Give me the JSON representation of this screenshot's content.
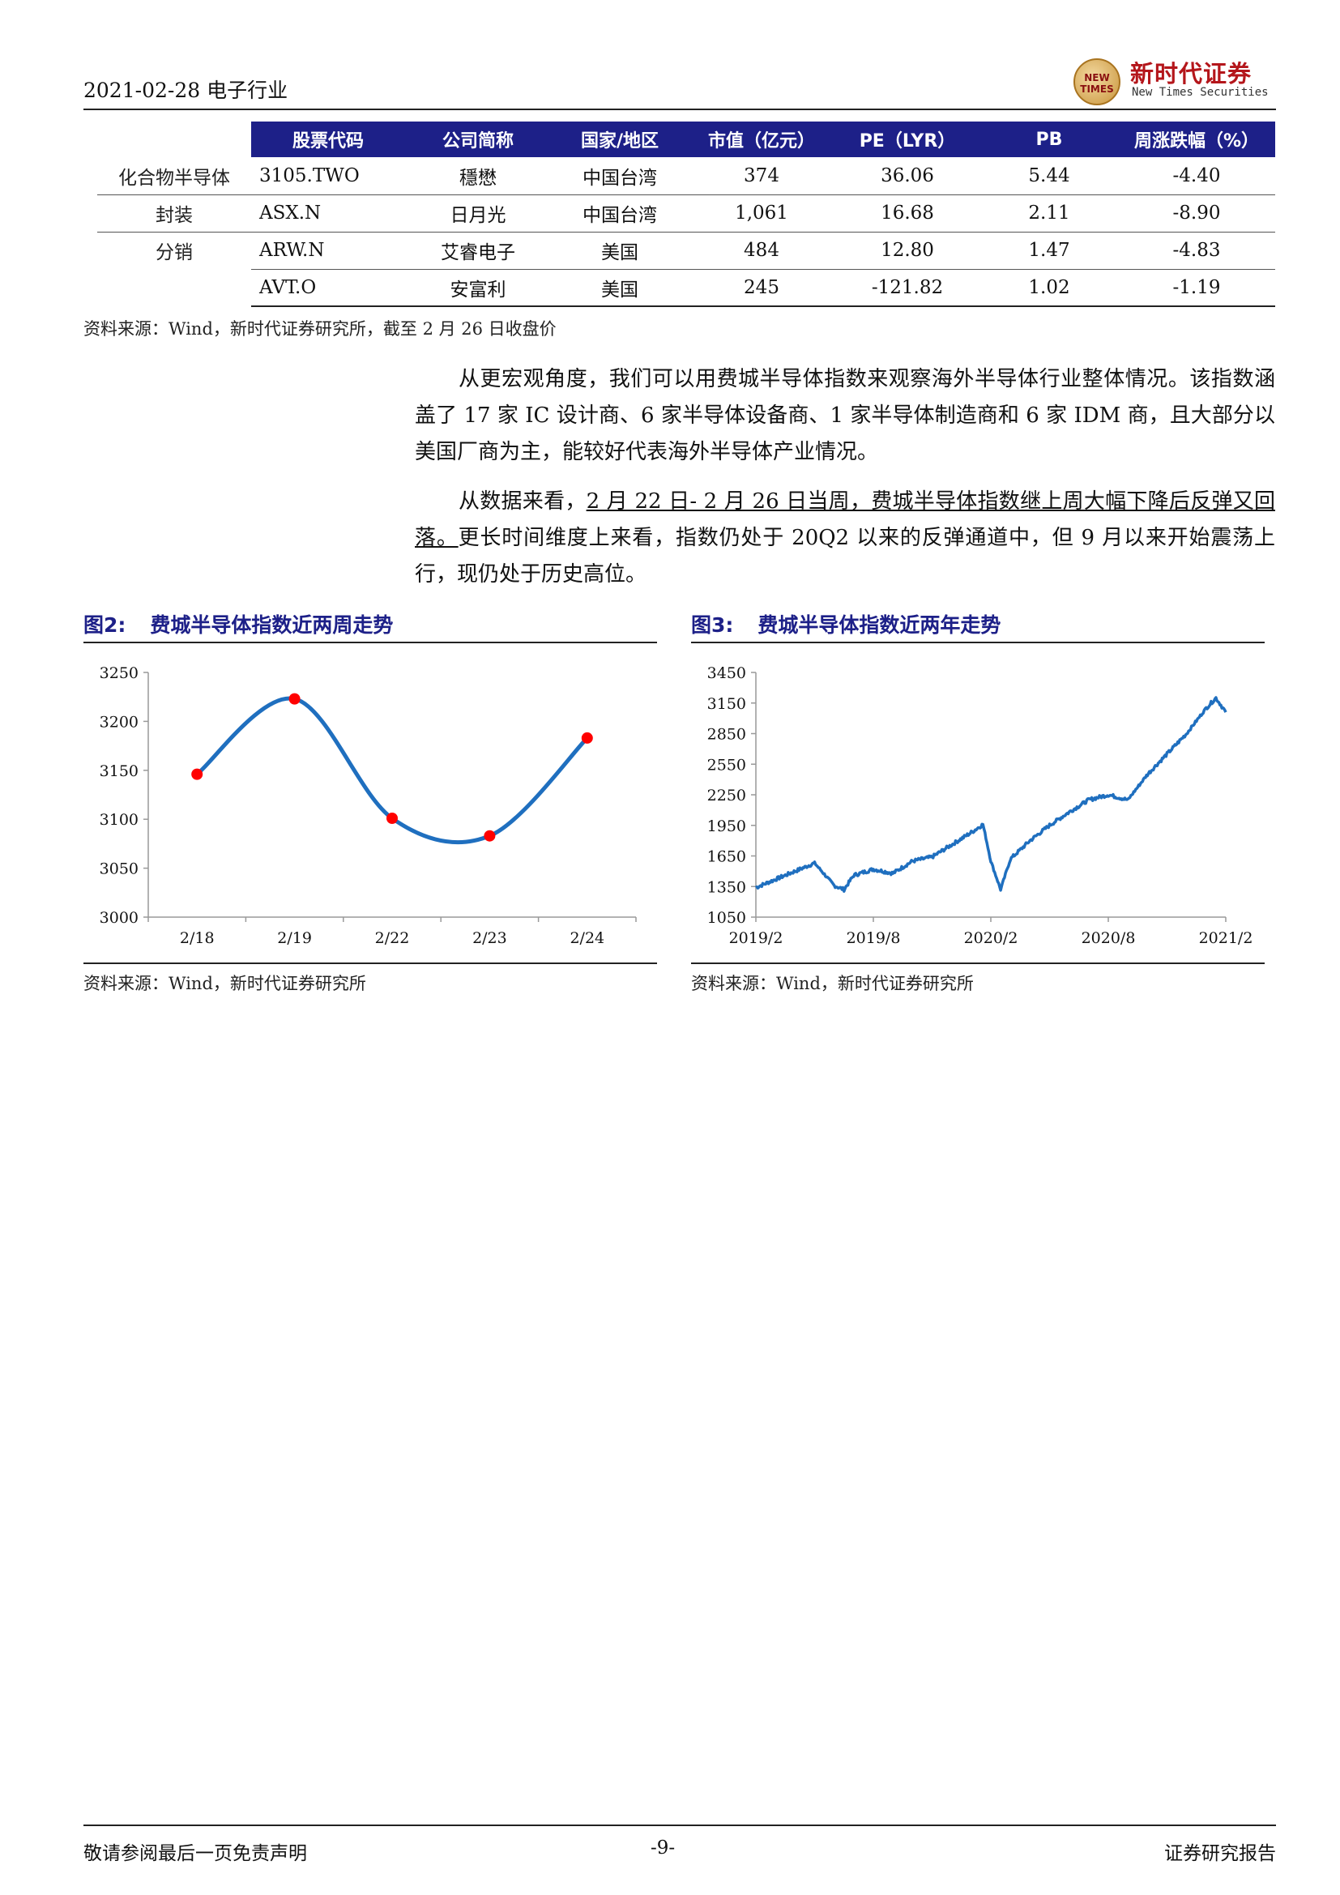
{
  "header": {
    "left": "2021-02-28 电子行业",
    "logo_cn": "新时代证券",
    "logo_en": "New Times Securities",
    "logo_seal": "NEW TIMES"
  },
  "table": {
    "headers": [
      "",
      "股票代码",
      "公司简称",
      "国家/地区",
      "市值（亿元）",
      "PE（LYR）",
      "PB",
      "周涨跌幅（%）"
    ],
    "rows": [
      {
        "category": "化合物半导体",
        "code": "3105.TWO",
        "name": "穩懋",
        "region": "中国台湾",
        "mcap": "374",
        "pe": "36.06",
        "pb": "5.44",
        "chg": "-4.40"
      },
      {
        "category": "封装",
        "code": "ASX.N",
        "name": "日月光",
        "region": "中国台湾",
        "mcap": "1,061",
        "pe": "16.68",
        "pb": "2.11",
        "chg": "-8.90"
      },
      {
        "category": "分销",
        "code": "ARW.N",
        "name": "艾睿电子",
        "region": "美国",
        "mcap": "484",
        "pe": "12.80",
        "pb": "1.47",
        "chg": "-4.83"
      },
      {
        "category": "",
        "code": "AVT.O",
        "name": "安富利",
        "region": "美国",
        "mcap": "245",
        "pe": "-121.82",
        "pb": "1.02",
        "chg": "-1.19"
      }
    ]
  },
  "table_source": "资料来源：Wind，新时代证券研究所，截至 2 月 26 日收盘价",
  "para1": "从更宏观角度，我们可以用费城半导体指数来观察海外半导体行业整体情况。该指数涵盖了 17 家 IC 设计商、6 家半导体设备商、1 家半导体制造商和 6 家 IDM 商，且大部分以美国厂商为主，能较好代表海外半导体产业情况。",
  "para2_a": "从数据来看，",
  "para2_ul": "2 月 22 日- 2 月 26 日当周，费城半导体指数继上周大幅下降后反弹又回落。",
  "para2_b": "更长时间维度上来看，指数仍处于 20Q2 以来的反弹通道中，但 9 月以来开始震荡上行，现仍处于历史高位。",
  "fig2": {
    "num": "图2:",
    "title": "费城半导体指数近两周走势",
    "source": "资料来源：Wind，新时代证券研究所"
  },
  "fig3": {
    "num": "图3:",
    "title": "费城半导体指数近两年走势",
    "source": "资料来源：Wind，新时代证券研究所"
  },
  "chart_data": [
    {
      "type": "line",
      "categories": [
        "2/18",
        "2/19",
        "2/22",
        "2/23",
        "2/24"
      ],
      "values": [
        3146,
        3223,
        3101,
        3083,
        3183
      ],
      "ylim": [
        3000,
        3250
      ],
      "yticks": [
        3000,
        3050,
        3100,
        3150,
        3200,
        3250
      ],
      "line_color": "#1f6fbf",
      "marker_color": "#ff0000",
      "grid": false
    },
    {
      "type": "line",
      "x_ticks": [
        "2019/2",
        "2019/8",
        "2020/2",
        "2020/8",
        "2021/2"
      ],
      "ylim": [
        1050,
        3450
      ],
      "yticks": [
        1050,
        1350,
        1650,
        1950,
        2250,
        2550,
        2850,
        3150,
        3450
      ],
      "x_range": [
        "2019/2",
        "2021/2"
      ],
      "series_months": [
        0,
        1,
        2,
        3,
        4,
        4.5,
        5,
        6,
        7,
        8,
        9,
        10,
        11,
        11.6,
        12,
        12.5,
        13,
        14,
        15,
        16,
        17,
        18,
        19,
        20,
        21,
        22,
        23,
        23.5,
        24
      ],
      "values": [
        1340,
        1420,
        1500,
        1580,
        1360,
        1320,
        1460,
        1520,
        1480,
        1600,
        1640,
        1760,
        1880,
        1960,
        1600,
        1320,
        1620,
        1800,
        1950,
        2080,
        2200,
        2250,
        2200,
        2450,
        2650,
        2850,
        3100,
        3200,
        3060
      ],
      "line_color": "#1f6fbf",
      "grid": false
    }
  ],
  "footer": {
    "left": "敬请参阅最后一页免责声明",
    "center": "-9-",
    "right": "证券研究报告"
  }
}
